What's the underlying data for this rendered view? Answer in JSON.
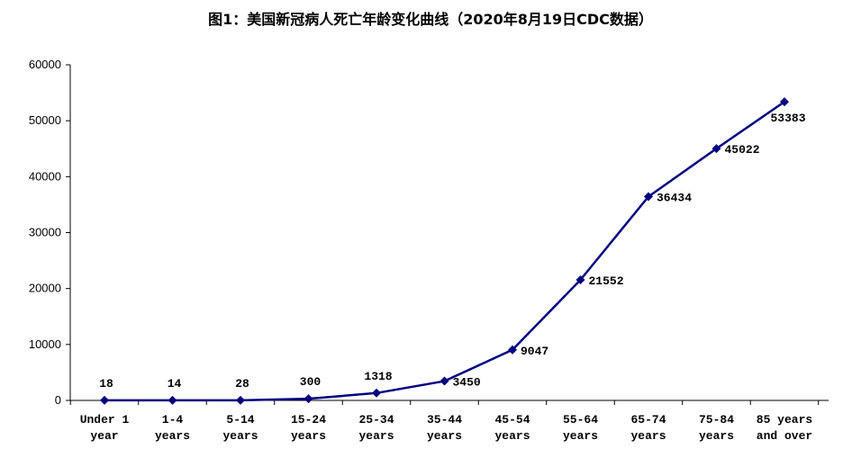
{
  "chart_data": {
    "type": "line",
    "title": "图1：美国新冠病人死亡年龄变化曲线（2020年8月19日CDC数据）",
    "categories": [
      [
        "Under 1",
        "year"
      ],
      [
        "1-4",
        "years"
      ],
      [
        "5-14",
        "years"
      ],
      [
        "15-24",
        "years"
      ],
      [
        "25-34",
        "years"
      ],
      [
        "35-44",
        "years"
      ],
      [
        "45-54",
        "years"
      ],
      [
        "55-64",
        "years"
      ],
      [
        "65-74",
        "years"
      ],
      [
        "75-84",
        "years"
      ],
      [
        "85 years",
        "and over"
      ]
    ],
    "values": [
      18,
      14,
      28,
      300,
      1318,
      3450,
      9047,
      21552,
      36434,
      45022,
      53383
    ],
    "ylim": [
      0,
      60000
    ],
    "yticks": [
      0,
      10000,
      20000,
      30000,
      40000,
      50000,
      60000
    ],
    "line_color": "#000080",
    "marker": "diamond",
    "grid": false,
    "legend": "none"
  }
}
